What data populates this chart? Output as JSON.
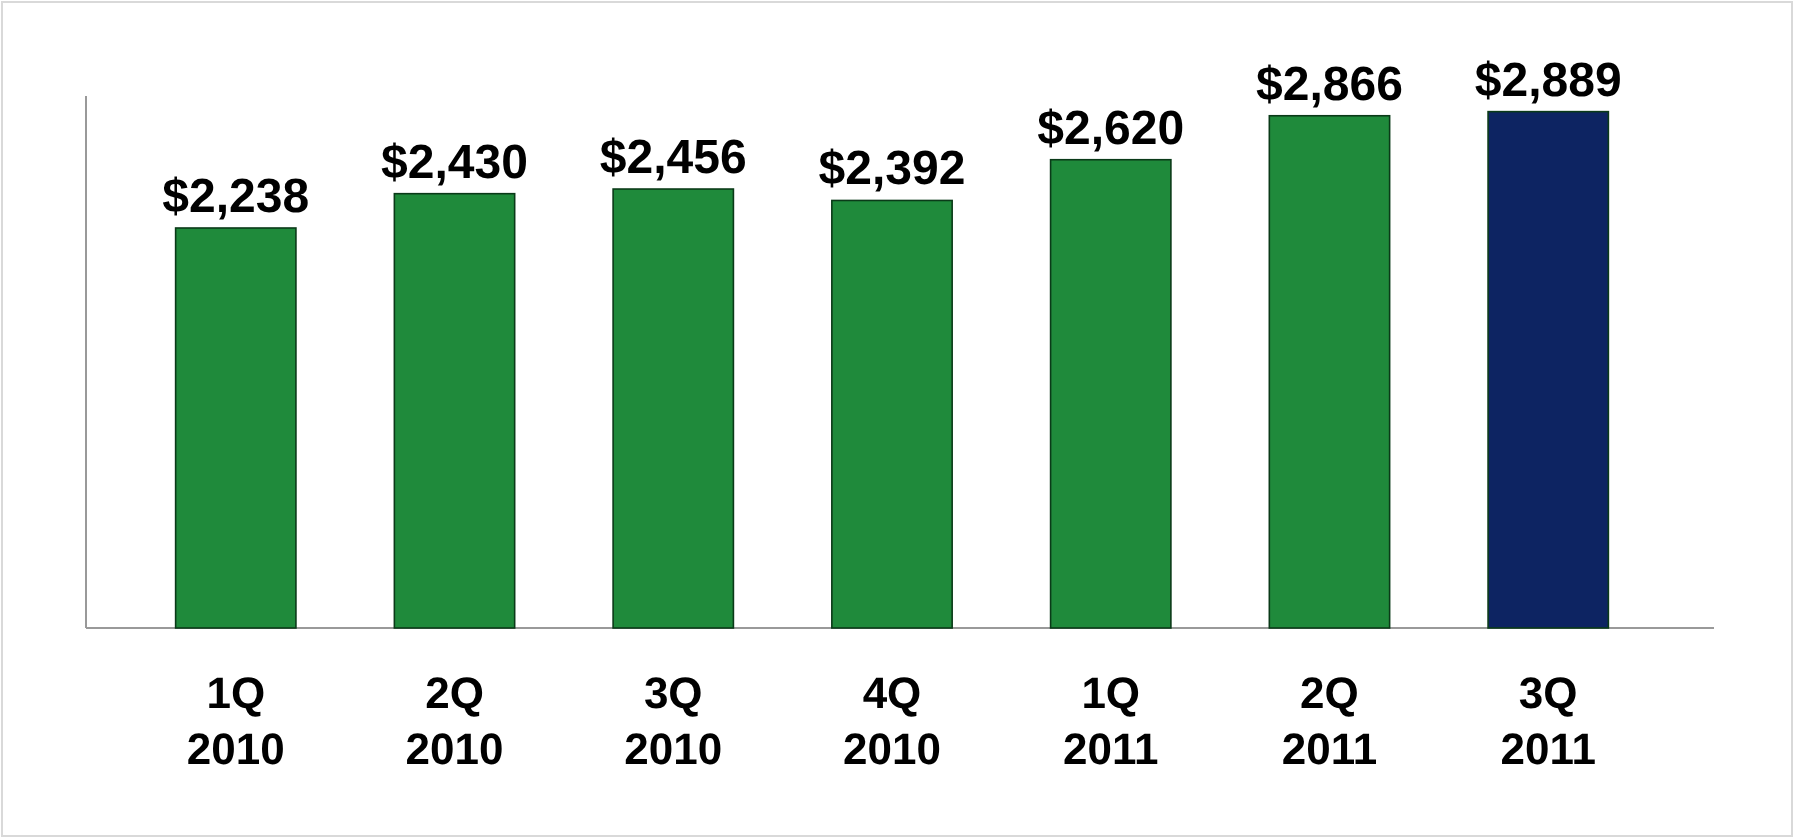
{
  "chart_data": {
    "type": "bar",
    "categories": [
      "1Q 2010",
      "2Q 2010",
      "3Q 2010",
      "4Q 2010",
      "1Q 2011",
      "2Q 2011",
      "3Q 2011"
    ],
    "values": [
      2238,
      2430,
      2456,
      2392,
      2620,
      2866,
      2889
    ],
    "colors": [
      "#1f8a3b",
      "#1f8a3b",
      "#1f8a3b",
      "#1f8a3b",
      "#1f8a3b",
      "#1f8a3b",
      "#0d2462"
    ],
    "value_labels": [
      "$2,238",
      "$2,430",
      "$2,456",
      "$2,392",
      "$2,620",
      "$2,866",
      "$2,889"
    ]
  }
}
